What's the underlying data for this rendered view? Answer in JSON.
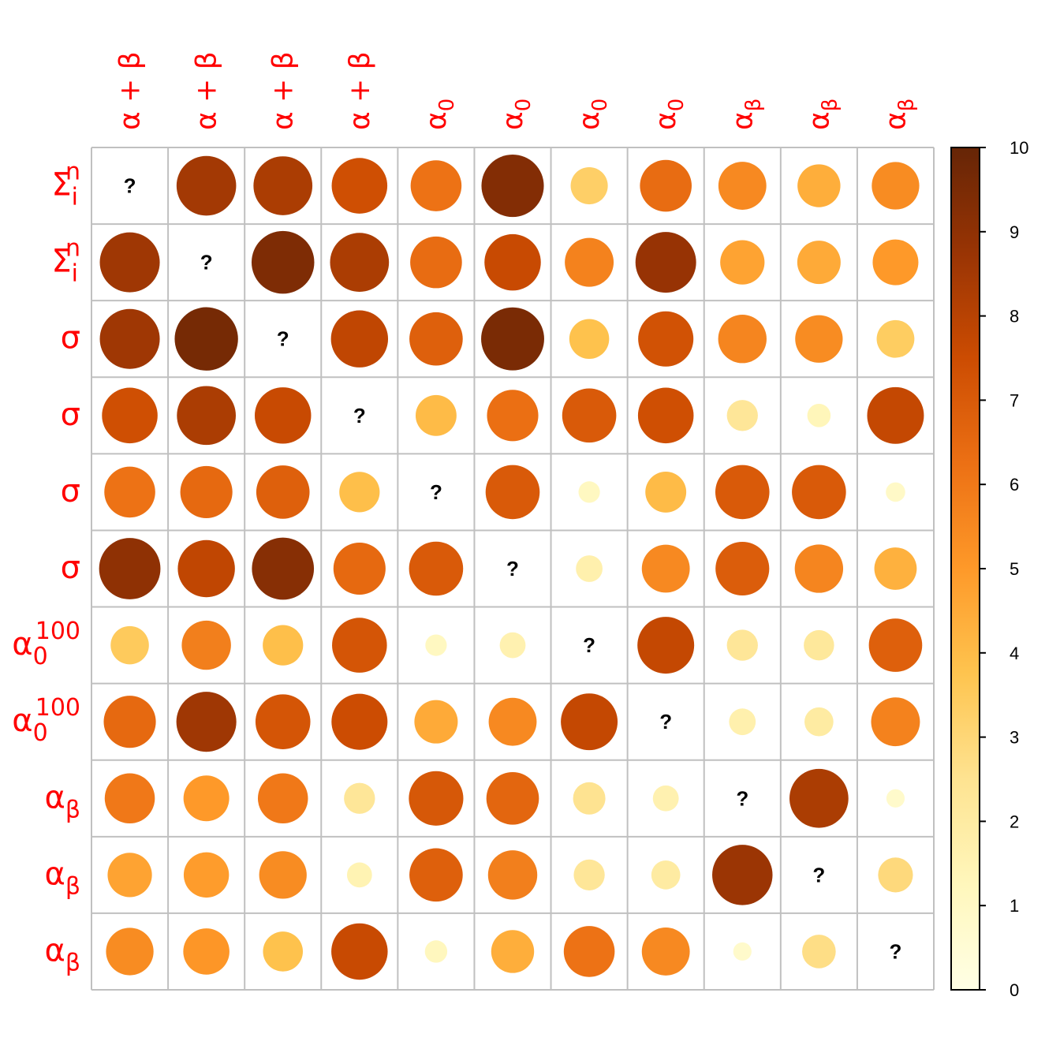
{
  "chart_data": {
    "type": "heatmap",
    "title": "",
    "row_labels": [
      {
        "base": "Σ",
        "sub": "i",
        "sup": "n"
      },
      {
        "base": "Σ",
        "sub": "i",
        "sup": "n"
      },
      {
        "base": "σ",
        "sub": "",
        "sup": ""
      },
      {
        "base": "σ",
        "sub": "",
        "sup": ""
      },
      {
        "base": "σ",
        "sub": "",
        "sup": ""
      },
      {
        "base": "σ",
        "sub": "",
        "sup": ""
      },
      {
        "base": "α",
        "sub": "0",
        "sup": "100"
      },
      {
        "base": "α",
        "sub": "0",
        "sup": "100"
      },
      {
        "base": "α",
        "sub": "β",
        "sup": ""
      },
      {
        "base": "α",
        "sub": "β",
        "sup": ""
      },
      {
        "base": "α",
        "sub": "β",
        "sup": ""
      }
    ],
    "col_labels": [
      {
        "base": "α + β",
        "sub": ""
      },
      {
        "base": "α + β",
        "sub": ""
      },
      {
        "base": "α + β",
        "sub": ""
      },
      {
        "base": "α + β",
        "sub": ""
      },
      {
        "base": "α",
        "sub": "0"
      },
      {
        "base": "α",
        "sub": "0"
      },
      {
        "base": "α",
        "sub": "0"
      },
      {
        "base": "α",
        "sub": "0"
      },
      {
        "base": "α",
        "sub": "β"
      },
      {
        "base": "α",
        "sub": "β"
      },
      {
        "base": "α",
        "sub": "β"
      }
    ],
    "values": [
      [
        null,
        8.5,
        8.3,
        7.4,
        6.2,
        9.3,
        3.3,
        6.4,
        5.5,
        4.4,
        5.4
      ],
      [
        8.6,
        null,
        9.4,
        8.3,
        6.4,
        7.6,
        5.7,
        8.8,
        4.7,
        4.5,
        5.0
      ],
      [
        8.6,
        9.6,
        null,
        7.8,
        6.8,
        9.5,
        3.8,
        7.3,
        5.6,
        5.4,
        3.4
      ],
      [
        7.4,
        8.3,
        7.6,
        null,
        4.0,
        6.3,
        7.0,
        7.4,
        2.3,
        1.3,
        7.7
      ],
      [
        6.2,
        6.5,
        6.8,
        3.9,
        null,
        7.0,
        1.1,
        4.0,
        7.0,
        7.0,
        0.9
      ],
      [
        9.0,
        7.8,
        9.2,
        6.5,
        7.0,
        null,
        1.7,
        5.5,
        6.9,
        5.6,
        4.3
      ],
      [
        3.5,
        5.8,
        3.9,
        7.2,
        1.1,
        1.6,
        null,
        7.7,
        2.3,
        2.2,
        6.8
      ],
      [
        6.5,
        8.6,
        7.2,
        7.5,
        4.5,
        5.5,
        7.7,
        null,
        1.7,
        2.0,
        5.7
      ],
      [
        6.0,
        5.0,
        6.0,
        2.3,
        7.1,
        6.6,
        2.5,
        1.6,
        null,
        8.3,
        0.8
      ],
      [
        4.7,
        4.9,
        5.4,
        1.5,
        6.8,
        5.8,
        2.3,
        2.0,
        8.7,
        null,
        2.9
      ],
      [
        5.4,
        5.1,
        3.8,
        7.6,
        1.2,
        4.4,
        6.2,
        5.5,
        0.8,
        2.7,
        null
      ]
    ],
    "diagonal_label": "?",
    "colorbar": {
      "min": 0,
      "max": 10,
      "ticks": [
        "0",
        "1",
        "2",
        "3",
        "4",
        "5",
        "6",
        "7",
        "8",
        "9",
        "10"
      ],
      "stops": [
        "#FFFFE5",
        "#FFF7BC",
        "#FEE391",
        "#FEC44F",
        "#FE9929",
        "#EC7014",
        "#CC4C02",
        "#993404",
        "#662506"
      ]
    },
    "label_color": "#FF0000",
    "grid_color": "#C0C0C0"
  }
}
